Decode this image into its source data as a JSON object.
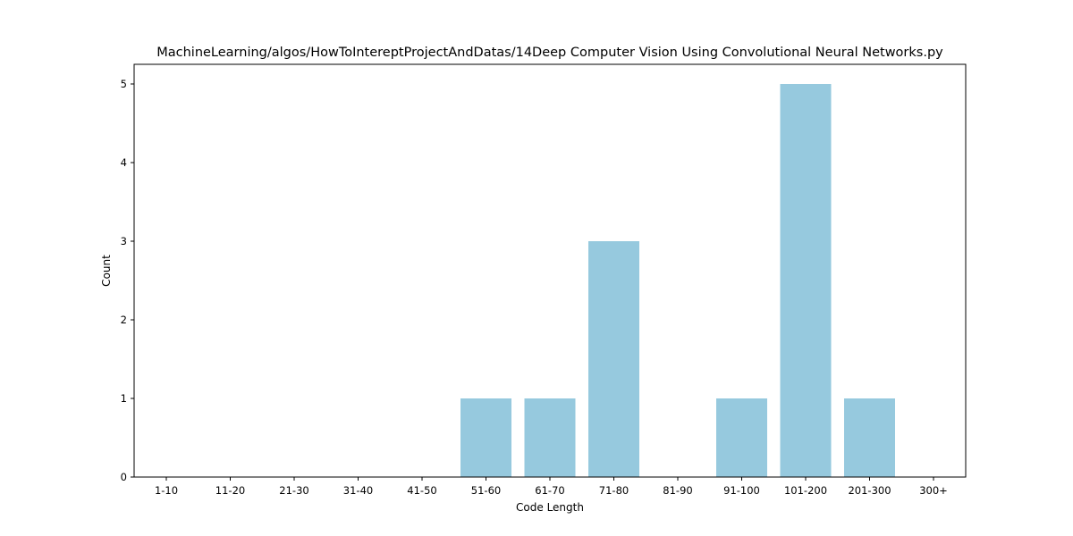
{
  "chart_data": {
    "type": "bar",
    "title": "MachineLearning/algos/HowToIntereptProjectAndDatas/14Deep Computer Vision Using Convolutional Neural Networks.py",
    "xlabel": "Code Length",
    "ylabel": "Count",
    "categories": [
      "1-10",
      "11-20",
      "21-30",
      "31-40",
      "41-50",
      "51-60",
      "61-70",
      "71-80",
      "81-90",
      "91-100",
      "101-200",
      "201-300",
      "300+"
    ],
    "values": [
      0,
      0,
      0,
      0,
      0,
      1,
      1,
      3,
      0,
      1,
      5,
      1,
      0
    ],
    "yticks": [
      "0",
      "1",
      "2",
      "3",
      "4",
      "5"
    ],
    "ylim": [
      0,
      5.25
    ],
    "bar_color": "#96c9de",
    "grid": false,
    "legend": "none"
  }
}
